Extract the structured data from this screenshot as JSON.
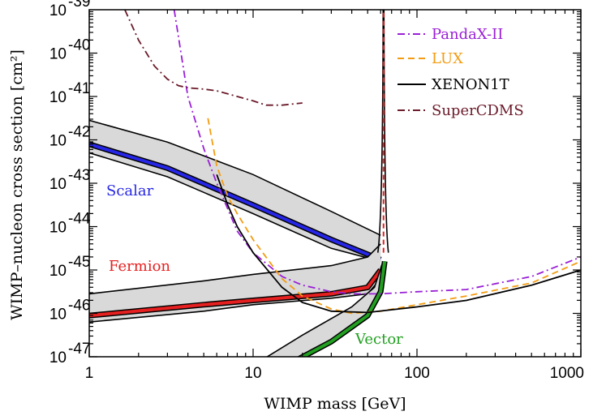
{
  "chart_data": {
    "type": "line",
    "xscale": "log",
    "yscale": "log",
    "xlim": [
      1,
      1000
    ],
    "ylim": [
      1e-47,
      1e-39
    ],
    "xlabel": "WIMP mass [GeV]",
    "ylabel": "WIMP–nucleon cross section  [cm²]",
    "xticks": [
      {
        "value": 1,
        "label": "1"
      },
      {
        "value": 10,
        "label": "10"
      },
      {
        "value": 100,
        "label": "100"
      },
      {
        "value": 1000,
        "label": "1000"
      }
    ],
    "yticks": [
      {
        "value": -39,
        "base": "10",
        "exp": "-39"
      },
      {
        "value": -40,
        "base": "10",
        "exp": "-40"
      },
      {
        "value": -41,
        "base": "10",
        "exp": "-41"
      },
      {
        "value": -42,
        "base": "10",
        "exp": "-42"
      },
      {
        "value": -43,
        "base": "10",
        "exp": "-43"
      },
      {
        "value": -44,
        "base": "10",
        "exp": "-44"
      },
      {
        "value": -45,
        "base": "10",
        "exp": "-45"
      },
      {
        "value": -46,
        "base": "10",
        "exp": "-46"
      },
      {
        "value": -47,
        "base": "10",
        "exp": "-47"
      }
    ],
    "legend": [
      {
        "key": "pandax",
        "label": "PandaX-II",
        "color": "#9a1fd6",
        "dash": "dashdot"
      },
      {
        "key": "lux",
        "label": "LUX",
        "color": "#f39c12",
        "dash": "dashed"
      },
      {
        "key": "xenon1t",
        "label": "XENON1T",
        "color": "#000000",
        "dash": "solid"
      },
      {
        "key": "supercdms",
        "label": "SuperCDMS",
        "color": "#6b1a2a",
        "dash": "dashdot"
      }
    ],
    "experiment_limits": [
      {
        "key": "pandax",
        "color": "#9a1fd6",
        "dash": "dashdot",
        "points": [
          [
            3.3,
            -39.0
          ],
          [
            4,
            -41.0
          ],
          [
            5,
            -42.2
          ],
          [
            6,
            -43.0
          ],
          [
            8,
            -44.1
          ],
          [
            10,
            -44.6
          ],
          [
            15,
            -45.15
          ],
          [
            20,
            -45.35
          ],
          [
            30,
            -45.5
          ],
          [
            40,
            -45.55
          ],
          [
            60,
            -45.55
          ],
          [
            100,
            -45.5
          ],
          [
            200,
            -45.45
          ],
          [
            500,
            -45.15
          ],
          [
            1000,
            -44.7
          ]
        ]
      },
      {
        "key": "lux",
        "color": "#f39c12",
        "dash": "dashed",
        "points": [
          [
            5.3,
            -41.5
          ],
          [
            6,
            -42.6
          ],
          [
            7,
            -43.3
          ],
          [
            8,
            -43.7
          ],
          [
            10,
            -44.3
          ],
          [
            15,
            -45.2
          ],
          [
            20,
            -45.6
          ],
          [
            30,
            -45.9
          ],
          [
            40,
            -46.0
          ],
          [
            60,
            -45.95
          ],
          [
            100,
            -45.8
          ],
          [
            200,
            -45.6
          ],
          [
            500,
            -45.3
          ],
          [
            1000,
            -44.8
          ]
        ]
      },
      {
        "key": "xenon1t",
        "color": "#000000",
        "dash": "solid",
        "points": [
          [
            6,
            -42.8
          ],
          [
            7,
            -43.5
          ],
          [
            8,
            -44.0
          ],
          [
            10,
            -44.6
          ],
          [
            15,
            -45.4
          ],
          [
            20,
            -45.75
          ],
          [
            30,
            -45.95
          ],
          [
            50,
            -45.98
          ],
          [
            100,
            -45.85
          ],
          [
            200,
            -45.7
          ],
          [
            500,
            -45.35
          ],
          [
            1000,
            -45.0
          ]
        ]
      },
      {
        "key": "supercdms",
        "color": "#6b1a2a",
        "dash": "dashdot",
        "points": [
          [
            1.65,
            -39.0
          ],
          [
            2,
            -39.7
          ],
          [
            2.5,
            -40.3
          ],
          [
            3,
            -40.6
          ],
          [
            3.5,
            -40.75
          ],
          [
            4,
            -40.8
          ],
          [
            5,
            -40.83
          ],
          [
            6,
            -40.87
          ],
          [
            8,
            -41.0
          ],
          [
            10,
            -41.1
          ],
          [
            12,
            -41.2
          ],
          [
            15,
            -41.2
          ],
          [
            20,
            -41.15
          ]
        ]
      }
    ],
    "scalar": {
      "label": "Scalar",
      "color": "#2626e6",
      "band_top": [
        [
          1,
          -41.55
        ],
        [
          3,
          -42.05
        ],
        [
          10,
          -42.8
        ],
        [
          30,
          -43.65
        ],
        [
          60,
          -44.2
        ]
      ],
      "band_bottom": [
        [
          1,
          -42.3
        ],
        [
          3,
          -42.85
        ],
        [
          10,
          -43.7
        ],
        [
          30,
          -44.5
        ],
        [
          60,
          -44.8
        ]
      ],
      "center": [
        [
          1,
          -42.1
        ],
        [
          3,
          -42.65
        ],
        [
          10,
          -43.5
        ],
        [
          30,
          -44.3
        ],
        [
          60,
          -44.76
        ]
      ]
    },
    "fermion": {
      "label": "Fermion",
      "color": "#e62020",
      "band_top": [
        [
          1,
          -45.55
        ],
        [
          5,
          -45.25
        ],
        [
          10,
          -45.1
        ],
        [
          30,
          -44.9
        ],
        [
          50,
          -44.7
        ],
        [
          60,
          -44.4
        ]
      ],
      "band_bottom": [
        [
          1,
          -46.2
        ],
        [
          5,
          -45.95
        ],
        [
          10,
          -45.8
        ],
        [
          30,
          -45.65
        ],
        [
          50,
          -45.55
        ],
        [
          60,
          -45.2
        ]
      ],
      "center": [
        [
          1,
          -46.05
        ],
        [
          5,
          -45.8
        ],
        [
          10,
          -45.7
        ],
        [
          30,
          -45.55
        ],
        [
          50,
          -45.4
        ],
        [
          60,
          -45.0
        ]
      ]
    },
    "vector": {
      "label": "Vector",
      "color": "#22a022",
      "band_top": [
        [
          10,
          -47.2
        ],
        [
          20,
          -46.5
        ],
        [
          40,
          -45.85
        ],
        [
          55,
          -45.4
        ],
        [
          62,
          -44.8
        ]
      ],
      "band_bottom": [
        [
          15,
          -47.2
        ],
        [
          30,
          -46.7
        ],
        [
          50,
          -46.1
        ],
        [
          60,
          -45.5
        ],
        [
          64,
          -44.8
        ]
      ],
      "center": [
        [
          16,
          -47.2
        ],
        [
          30,
          -46.65
        ],
        [
          50,
          -46.05
        ],
        [
          60,
          -45.5
        ],
        [
          63.5,
          -44.8
        ]
      ]
    },
    "resonance_mass": 62.5
  }
}
